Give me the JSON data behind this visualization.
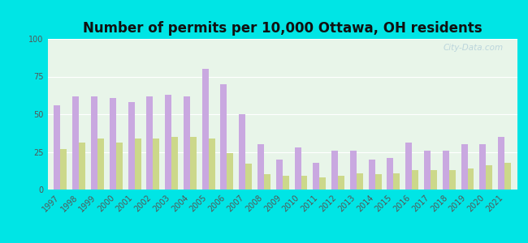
{
  "title": "Number of permits per 10,000 Ottawa, OH residents",
  "years": [
    1997,
    1998,
    1999,
    2000,
    2001,
    2002,
    2003,
    2004,
    2005,
    2006,
    2007,
    2008,
    2009,
    2010,
    2011,
    2012,
    2013,
    2014,
    2015,
    2016,
    2017,
    2018,
    2019,
    2020,
    2021
  ],
  "ottawa_county": [
    56,
    62,
    62,
    61,
    58,
    62,
    63,
    62,
    80,
    70,
    50,
    30,
    20,
    28,
    18,
    26,
    26,
    20,
    21,
    31,
    26,
    26,
    30,
    30,
    35
  ],
  "ohio_average": [
    27,
    31,
    34,
    31,
    34,
    34,
    35,
    35,
    34,
    24,
    17,
    10,
    9,
    9,
    8,
    9,
    11,
    10,
    11,
    13,
    13,
    13,
    14,
    16,
    18
  ],
  "ottawa_color": "#c9a8e0",
  "ohio_color": "#ccd88a",
  "plot_bg_color": "#e8f5e9",
  "outer_bg": "#00e5e5",
  "ylim": [
    0,
    100
  ],
  "yticks": [
    0,
    25,
    50,
    75,
    100
  ],
  "bar_width": 0.35,
  "title_fontsize": 12,
  "tick_fontsize": 7,
  "legend_fontsize": 9,
  "watermark": "City-Data.com"
}
